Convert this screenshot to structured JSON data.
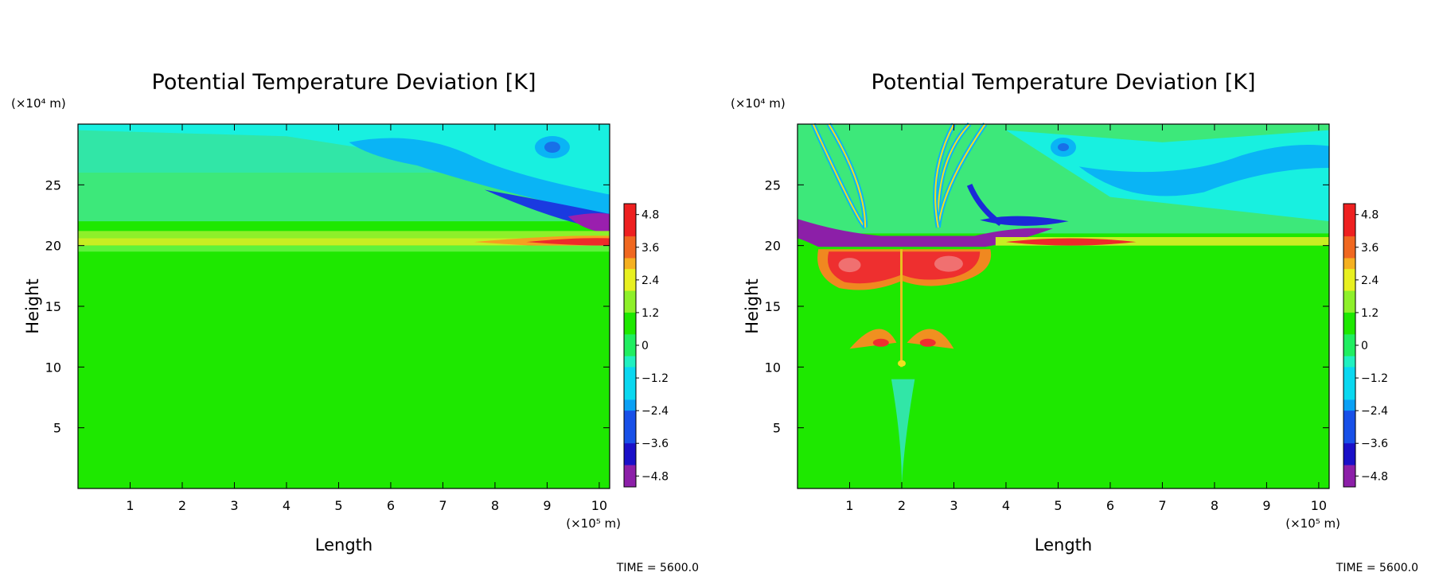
{
  "chart_data": [
    {
      "type": "heatmap",
      "title": "Potential Temperature Deviation [K]",
      "xlabel": "Length",
      "ylabel": "Height",
      "x_unit": "(×10⁵ m)",
      "y_unit": "(×10⁴ m)",
      "xlim": [
        0,
        10.2
      ],
      "ylim": [
        0,
        30
      ],
      "x_ticks": [
        "1",
        "2",
        "3",
        "4",
        "5",
        "6",
        "7",
        "8",
        "9",
        "10"
      ],
      "y_ticks": [
        "5",
        "10",
        "15",
        "20",
        "25"
      ],
      "colorbar": {
        "min": -5.2,
        "max": 5.2,
        "tick_labels": [
          "4.8",
          "3.6",
          "2.4",
          "1.2",
          "0",
          "−1.2",
          "−2.4",
          "−3.6",
          "−4.8"
        ]
      },
      "time_label": "TIME = 5600.0",
      "features": [
        {
          "desc": "near-zero background",
          "value": 0
        },
        {
          "desc": "weak warm band near tropopause",
          "y": 21.5,
          "value": 0.6
        },
        {
          "desc": "cool lobe upper middle",
          "x": 6,
          "y": 27,
          "value": -2.2
        },
        {
          "desc": "strong cool core upper right",
          "x": 9.9,
          "y": 22,
          "value": -4.8
        },
        {
          "desc": "warm streak",
          "x": 9.3,
          "y": 20.3,
          "value": 4.0
        }
      ]
    },
    {
      "type": "heatmap",
      "title": "Potential Temperature Deviation [K]",
      "xlabel": "Length",
      "ylabel": "Height",
      "x_unit": "(×10⁵ m)",
      "y_unit": "(×10⁴ m)",
      "xlim": [
        0,
        10.2
      ],
      "ylim": [
        0,
        30
      ],
      "x_ticks": [
        "1",
        "2",
        "3",
        "4",
        "5",
        "6",
        "7",
        "8",
        "9",
        "10"
      ],
      "y_ticks": [
        "5",
        "10",
        "15",
        "20",
        "25"
      ],
      "colorbar": {
        "min": -5.2,
        "max": 5.2,
        "tick_labels": [
          "4.8",
          "3.6",
          "2.4",
          "1.2",
          "0",
          "−1.2",
          "−2.4",
          "−3.6",
          "−4.8"
        ]
      },
      "time_label": "TIME = 5600.0",
      "features": [
        {
          "desc": "near-zero background",
          "value": 0
        },
        {
          "desc": "cold cap above convection",
          "x": 2.0,
          "y": 20.6,
          "value": -4.8
        },
        {
          "desc": "warm anvil region",
          "x": 2.0,
          "y": 17.5,
          "value": 4.5
        },
        {
          "desc": "warm cells mid-level",
          "x": 2.0,
          "y": 12,
          "value": 3.0
        },
        {
          "desc": "cool lobe upper right",
          "x": 7,
          "y": 27,
          "value": -2.2
        },
        {
          "desc": "cool core",
          "x": 3.6,
          "y": 21.8,
          "value": -4.8
        }
      ]
    }
  ]
}
